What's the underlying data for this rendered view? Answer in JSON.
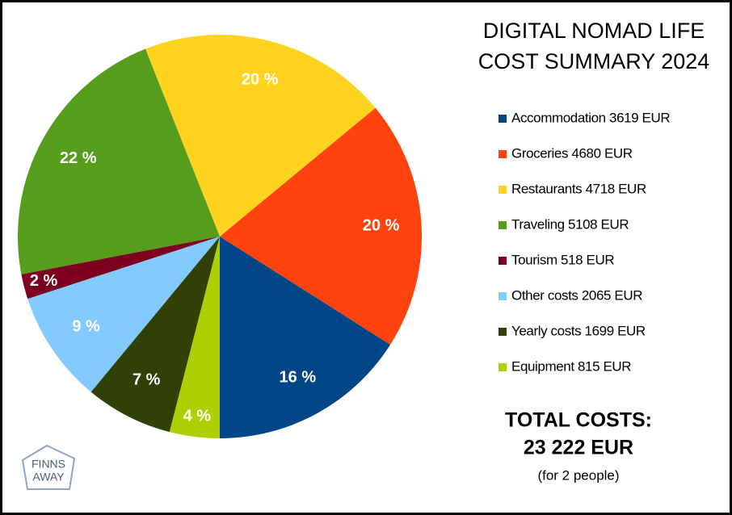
{
  "chart_data": {
    "type": "pie",
    "title": [
      "DIGITAL NOMAD LIFE",
      "COST SUMMARY 2024"
    ],
    "categories": [
      "Accommodation 3619 EUR",
      "Groceries 4680 EUR",
      "Restaurants 4718 EUR",
      "Traveling 5108 EUR",
      "Tourism 518 EUR",
      "Other costs 2065 EUR",
      "Yearly costs 1699 EUR",
      "Equipment 815 EUR"
    ],
    "values": [
      16,
      20,
      20,
      22,
      2,
      9,
      7,
      4
    ],
    "value_labels": [
      "16 %",
      "20 %",
      "20 %",
      "22 %",
      "2 %",
      "9 %",
      "7 %",
      "4 %"
    ],
    "colors": [
      "#004586",
      "#ff420e",
      "#ffd320",
      "#579d1c",
      "#7e0021",
      "#83caff",
      "#314004",
      "#aecf00"
    ],
    "total": [
      "TOTAL COSTS:",
      "23 222 EUR"
    ],
    "note": "(for 2 people)",
    "logo": [
      "FINNS",
      "AWAY"
    ]
  }
}
